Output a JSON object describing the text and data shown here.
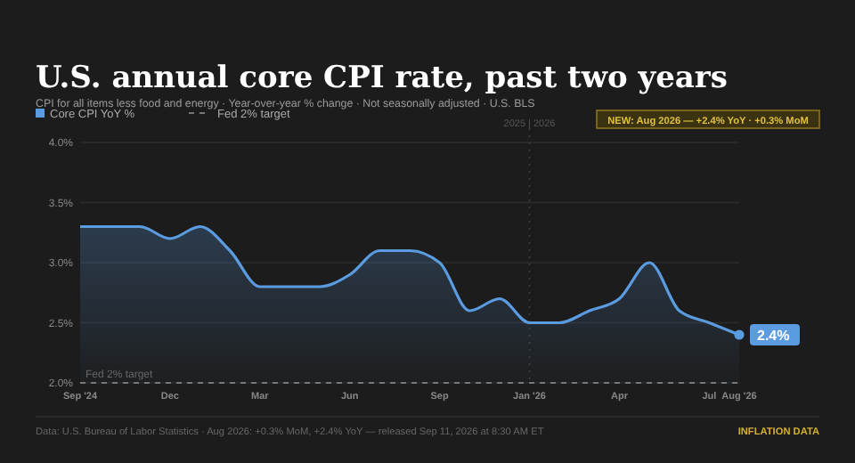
{
  "chart_data": {
    "type": "area",
    "title": "U.S. annual core CPI rate, past two years",
    "subtitle": "CPI for all items less food and energy · Year-over-year % change · Not seasonally adjusted · U.S. BLS",
    "categories": [
      "Sep '24",
      null,
      null,
      "Dec",
      null,
      null,
      "Mar",
      null,
      null,
      "Jun",
      null,
      null,
      "Sep",
      null,
      null,
      "Jan '26",
      null,
      null,
      "Apr",
      null,
      null,
      "Jul",
      "Aug '26"
    ],
    "series": [
      {
        "name": "Core CPI YoY %",
        "color": "#5b9be0",
        "values": [
          3.3,
          3.3,
          3.3,
          3.2,
          3.3,
          3.1,
          2.8,
          2.8,
          2.8,
          2.9,
          3.1,
          3.1,
          3.0,
          2.6,
          2.7,
          2.5,
          2.5,
          2.6,
          2.7,
          3.0,
          2.6,
          2.5,
          2.4
        ],
        "value_labels": [
          null,
          null,
          null,
          null,
          null,
          null,
          null,
          null,
          null,
          null,
          null,
          null,
          null,
          null,
          null,
          null,
          null,
          null,
          null,
          null,
          null,
          null,
          "2.4%"
        ]
      }
    ],
    "ylim": [
      2,
      4
    ],
    "yticks": [
      {
        "value": 2,
        "label": "2.0%"
      },
      {
        "value": 2.5,
        "label": "2.5%"
      },
      {
        "value": 3,
        "label": "3.0%"
      },
      {
        "value": 3.5,
        "label": "3.5%"
      },
      {
        "value": 4,
        "label": "4.0%"
      }
    ],
    "grid": "y",
    "legend": "top left",
    "marker": "none",
    "line_style": "solid",
    "ref_lines": [
      {
        "axis": "y",
        "value": 2,
        "label": "Fed 2% target",
        "line_style": "dashed",
        "color": "#777777"
      },
      {
        "axis": "x",
        "value": "Jan '26",
        "label": "2025 | 2026",
        "line_style": "dotted",
        "color": "#3a3a3a"
      }
    ],
    "annotations": [
      "NEW: Aug 2026 — +2.4% YoY · +0.3% MoM",
      "Data: U.S. Bureau of Labor Statistics · Aug 2026: +0.3% MoM, +2.4% YoY — released Sep 11, 2026 at 8:30 AM ET",
      "INFLATION DATA"
    ]
  }
}
